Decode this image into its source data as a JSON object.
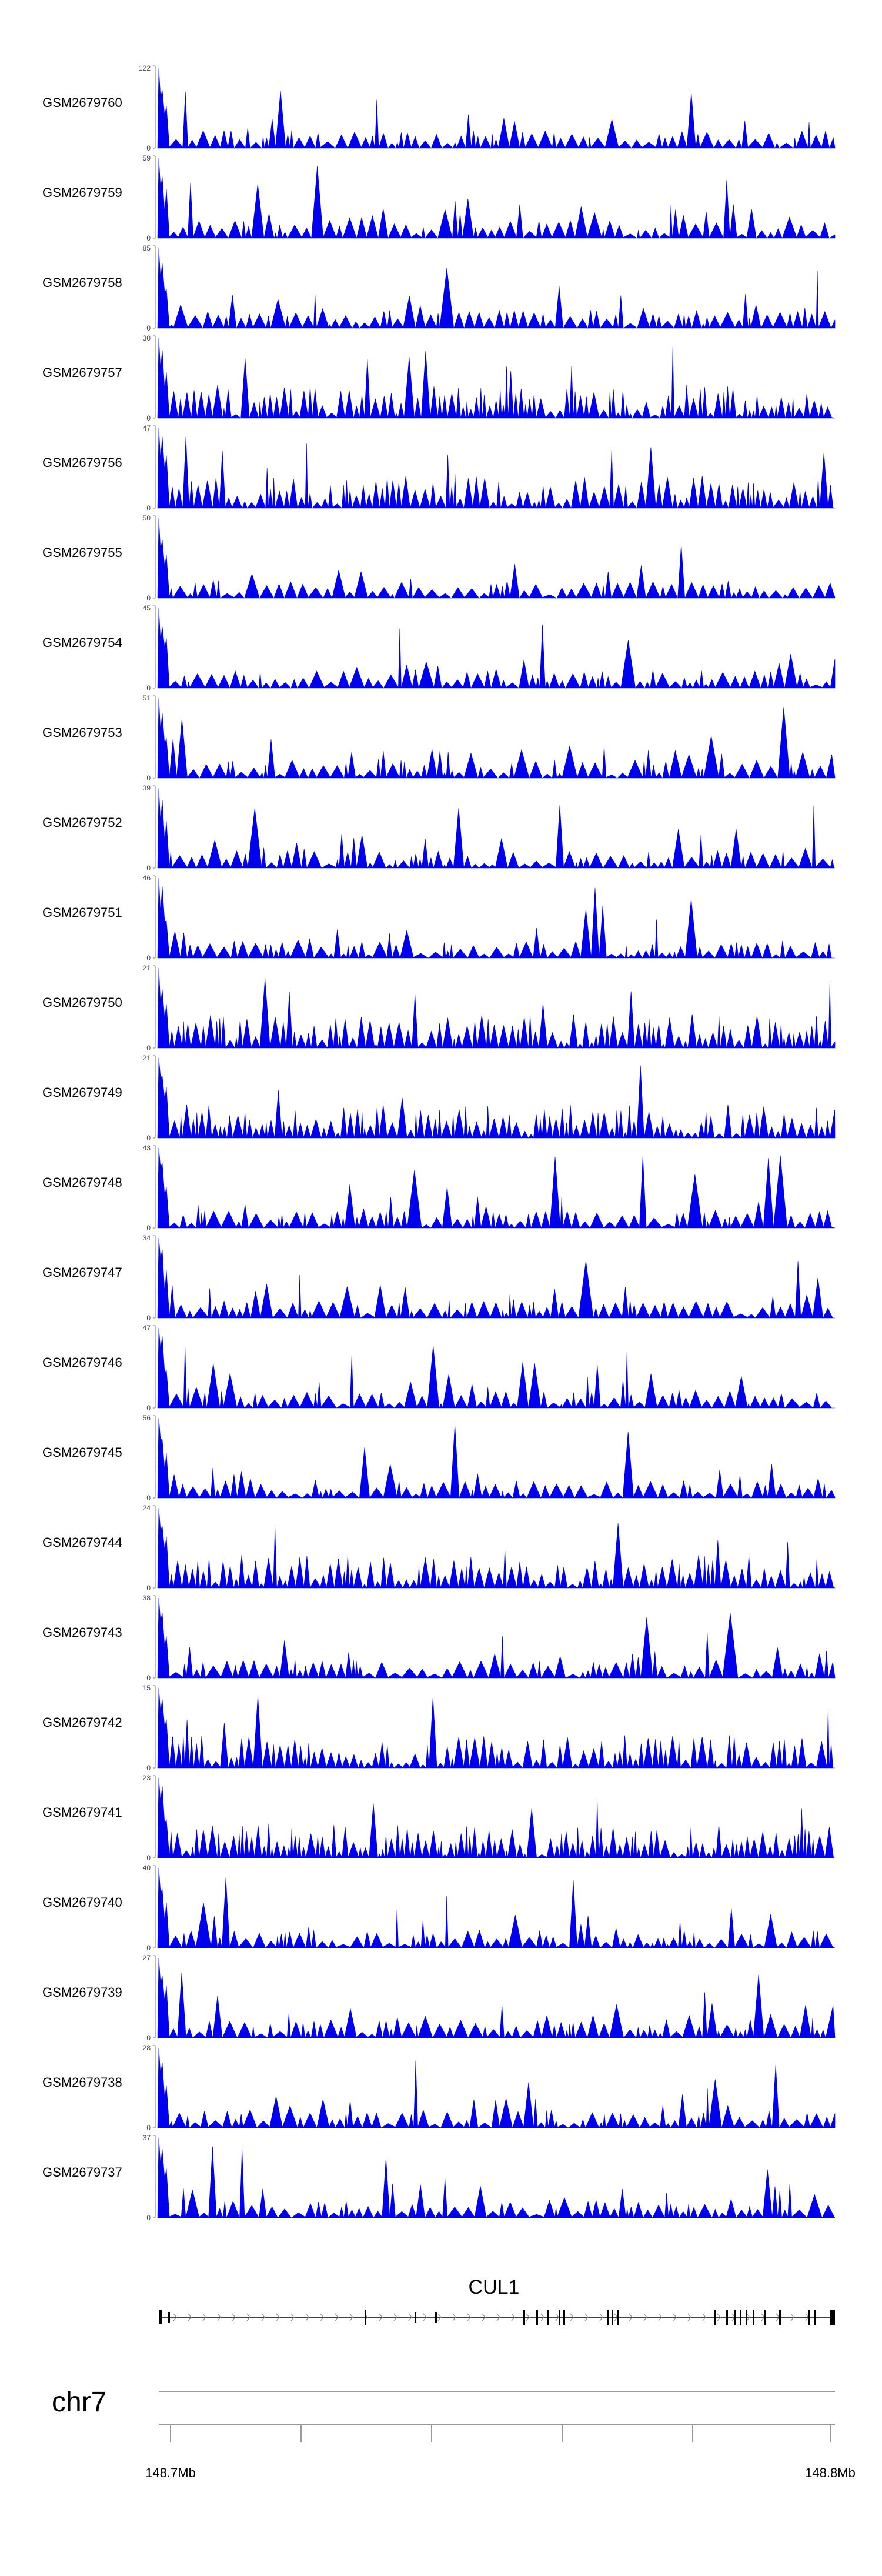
{
  "tracks": [
    {
      "label": "GSM2679760",
      "ymax": "122",
      "yzero": "0"
    },
    {
      "label": "GSM2679759",
      "ymax": "59",
      "yzero": "0"
    },
    {
      "label": "GSM2679758",
      "ymax": "85",
      "yzero": "0"
    },
    {
      "label": "GSM2679757",
      "ymax": "30",
      "yzero": "0"
    },
    {
      "label": "GSM2679756",
      "ymax": "47",
      "yzero": "0"
    },
    {
      "label": "GSM2679755",
      "ymax": "50",
      "yzero": "0"
    },
    {
      "label": "GSM2679754",
      "ymax": "45",
      "yzero": "0"
    },
    {
      "label": "GSM2679753",
      "ymax": "51",
      "yzero": "0"
    },
    {
      "label": "GSM2679752",
      "ymax": "39",
      "yzero": "0"
    },
    {
      "label": "GSM2679751",
      "ymax": "46",
      "yzero": "0"
    },
    {
      "label": "GSM2679750",
      "ymax": "21",
      "yzero": "0"
    },
    {
      "label": "GSM2679749",
      "ymax": "21",
      "yzero": "0"
    },
    {
      "label": "GSM2679748",
      "ymax": "43",
      "yzero": "0"
    },
    {
      "label": "GSM2679747",
      "ymax": "34",
      "yzero": "0"
    },
    {
      "label": "GSM2679746",
      "ymax": "47",
      "yzero": "0"
    },
    {
      "label": "GSM2679745",
      "ymax": "56",
      "yzero": "0"
    },
    {
      "label": "GSM2679744",
      "ymax": "24",
      "yzero": "0"
    },
    {
      "label": "GSM2679743",
      "ymax": "38",
      "yzero": "0"
    },
    {
      "label": "GSM2679742",
      "ymax": "15",
      "yzero": "0"
    },
    {
      "label": "GSM2679741",
      "ymax": "23",
      "yzero": "0"
    },
    {
      "label": "GSM2679740",
      "ymax": "40",
      "yzero": "0"
    },
    {
      "label": "GSM2679739",
      "ymax": "27",
      "yzero": "0"
    },
    {
      "label": "GSM2679738",
      "ymax": "28",
      "yzero": "0"
    },
    {
      "label": "GSM2679737",
      "ymax": "37",
      "yzero": "0"
    }
  ],
  "gene": {
    "name": "CUL1",
    "strand": "+"
  },
  "chromosome": "chr7",
  "axis": {
    "start_label": "148.7Mb",
    "end_label": "148.8Mb"
  },
  "colors": {
    "signal": "#0000ee",
    "axis": "#999999",
    "gene": "#000000"
  },
  "chart_data": {
    "type": "area",
    "title": "",
    "xlabel": "",
    "ylabel": "",
    "x_range_label": [
      "148.7Mb",
      "148.8Mb"
    ],
    "series": [
      {
        "name": "GSM2679760",
        "ylim": [
          0,
          122
        ]
      },
      {
        "name": "GSM2679759",
        "ylim": [
          0,
          59
        ]
      },
      {
        "name": "GSM2679758",
        "ylim": [
          0,
          85
        ]
      },
      {
        "name": "GSM2679757",
        "ylim": [
          0,
          30
        ]
      },
      {
        "name": "GSM2679756",
        "ylim": [
          0,
          47
        ]
      },
      {
        "name": "GSM2679755",
        "ylim": [
          0,
          50
        ]
      },
      {
        "name": "GSM2679754",
        "ylim": [
          0,
          45
        ]
      },
      {
        "name": "GSM2679753",
        "ylim": [
          0,
          51
        ]
      },
      {
        "name": "GSM2679752",
        "ylim": [
          0,
          39
        ]
      },
      {
        "name": "GSM2679751",
        "ylim": [
          0,
          46
        ]
      },
      {
        "name": "GSM2679750",
        "ylim": [
          0,
          21
        ]
      },
      {
        "name": "GSM2679749",
        "ylim": [
          0,
          21
        ]
      },
      {
        "name": "GSM2679748",
        "ylim": [
          0,
          43
        ]
      },
      {
        "name": "GSM2679747",
        "ylim": [
          0,
          34
        ]
      },
      {
        "name": "GSM2679746",
        "ylim": [
          0,
          47
        ]
      },
      {
        "name": "GSM2679745",
        "ylim": [
          0,
          56
        ]
      },
      {
        "name": "GSM2679744",
        "ylim": [
          0,
          24
        ]
      },
      {
        "name": "GSM2679743",
        "ylim": [
          0,
          38
        ]
      },
      {
        "name": "GSM2679742",
        "ylim": [
          0,
          15
        ]
      },
      {
        "name": "GSM2679741",
        "ylim": [
          0,
          23
        ]
      },
      {
        "name": "GSM2679740",
        "ylim": [
          0,
          40
        ]
      },
      {
        "name": "GSM2679739",
        "ylim": [
          0,
          27
        ]
      },
      {
        "name": "GSM2679738",
        "ylim": [
          0,
          28
        ]
      },
      {
        "name": "GSM2679737",
        "ylim": [
          0,
          37
        ]
      }
    ],
    "grid": false,
    "legend": "none"
  }
}
